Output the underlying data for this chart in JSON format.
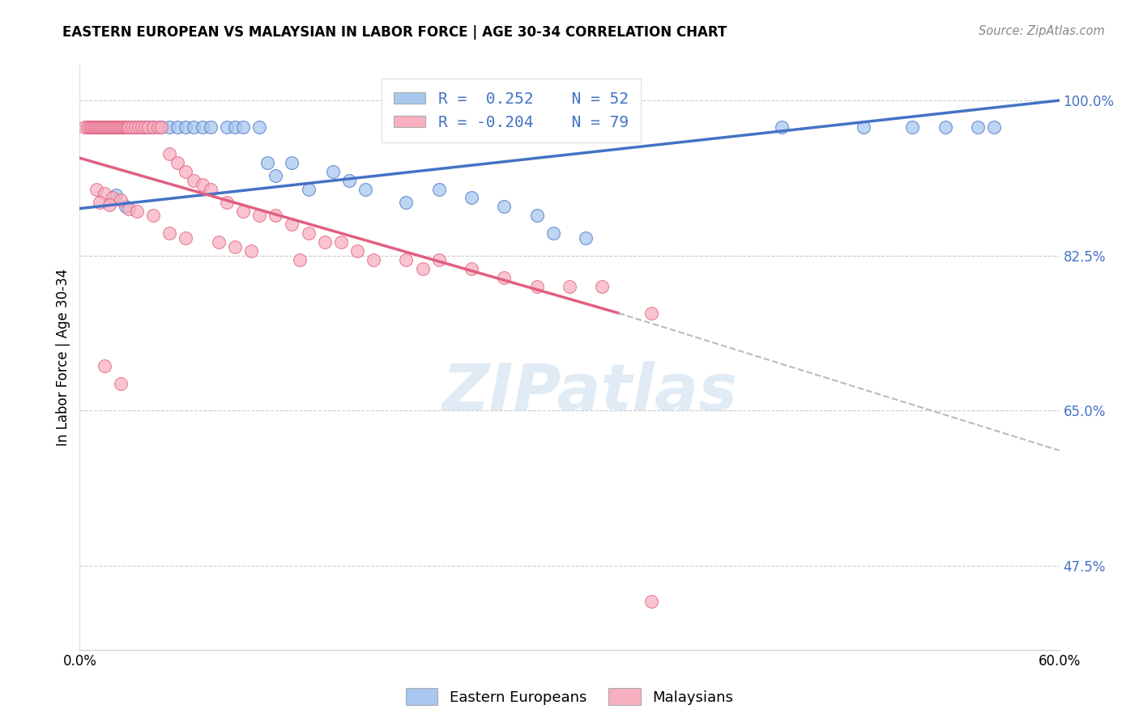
{
  "title": "EASTERN EUROPEAN VS MALAYSIAN IN LABOR FORCE | AGE 30-34 CORRELATION CHART",
  "source": "Source: ZipAtlas.com",
  "ylabel": "In Labor Force | Age 30-34",
  "xlim": [
    0.0,
    0.6
  ],
  "ylim": [
    0.38,
    1.04
  ],
  "yticks": [
    0.475,
    0.65,
    0.825,
    1.0
  ],
  "ytick_labels": [
    "47.5%",
    "65.0%",
    "82.5%",
    "100.0%"
  ],
  "xticks": [
    0.0,
    0.1,
    0.2,
    0.3,
    0.4,
    0.5,
    0.6
  ],
  "xtick_labels": [
    "0.0%",
    "",
    "",
    "",
    "",
    "",
    "60.0%"
  ],
  "legend_r_blue": "0.252",
  "legend_n_blue": "52",
  "legend_r_pink": "-0.204",
  "legend_n_pink": "79",
  "blue_color": "#A8C8F0",
  "pink_color": "#F8B0C0",
  "blue_line_color": "#4472C4",
  "pink_line_color": "#E06080",
  "watermark": "ZIPatlas",
  "blue_line_x0": 0.0,
  "blue_line_y0": 0.878,
  "blue_line_x1": 0.6,
  "blue_line_y1": 1.0,
  "pink_line_solid_x0": 0.0,
  "pink_line_solid_y0": 0.935,
  "pink_line_solid_x1": 0.33,
  "pink_line_solid_y1": 0.76,
  "pink_line_dash_x0": 0.33,
  "pink_line_dash_y0": 0.76,
  "pink_line_dash_x1": 0.6,
  "pink_line_dash_y1": 0.605,
  "blue_scatter_x": [
    0.005,
    0.008,
    0.01,
    0.012,
    0.013,
    0.015,
    0.016,
    0.018,
    0.02,
    0.021,
    0.023,
    0.025,
    0.03,
    0.032,
    0.035,
    0.038,
    0.04,
    0.042,
    0.045,
    0.05,
    0.055,
    0.06,
    0.065,
    0.07,
    0.075,
    0.08,
    0.09,
    0.095,
    0.1,
    0.11,
    0.115,
    0.12,
    0.13,
    0.14,
    0.155,
    0.165,
    0.175,
    0.2,
    0.22,
    0.24,
    0.26,
    0.28,
    0.29,
    0.31,
    0.43,
    0.48,
    0.51,
    0.53,
    0.55,
    0.56,
    0.022,
    0.028
  ],
  "blue_scatter_y": [
    0.97,
    0.97,
    0.97,
    0.97,
    0.97,
    0.97,
    0.97,
    0.97,
    0.97,
    0.97,
    0.97,
    0.97,
    0.97,
    0.97,
    0.97,
    0.97,
    0.97,
    0.97,
    0.97,
    0.97,
    0.97,
    0.97,
    0.97,
    0.97,
    0.97,
    0.97,
    0.97,
    0.97,
    0.97,
    0.97,
    0.93,
    0.915,
    0.93,
    0.9,
    0.92,
    0.91,
    0.9,
    0.885,
    0.9,
    0.89,
    0.88,
    0.87,
    0.85,
    0.845,
    0.97,
    0.97,
    0.97,
    0.97,
    0.97,
    0.97,
    0.893,
    0.88
  ],
  "pink_scatter_x": [
    0.003,
    0.005,
    0.006,
    0.007,
    0.008,
    0.009,
    0.01,
    0.011,
    0.012,
    0.013,
    0.014,
    0.015,
    0.016,
    0.017,
    0.018,
    0.019,
    0.02,
    0.021,
    0.022,
    0.023,
    0.024,
    0.025,
    0.026,
    0.027,
    0.028,
    0.029,
    0.03,
    0.032,
    0.034,
    0.036,
    0.038,
    0.04,
    0.042,
    0.045,
    0.048,
    0.05,
    0.055,
    0.06,
    0.065,
    0.07,
    0.075,
    0.08,
    0.09,
    0.1,
    0.11,
    0.12,
    0.13,
    0.14,
    0.15,
    0.16,
    0.17,
    0.18,
    0.2,
    0.21,
    0.22,
    0.24,
    0.26,
    0.28,
    0.3,
    0.32,
    0.35,
    0.01,
    0.015,
    0.02,
    0.025,
    0.012,
    0.018,
    0.03,
    0.035,
    0.045,
    0.055,
    0.065,
    0.085,
    0.095,
    0.105,
    0.135,
    0.35,
    0.015,
    0.025
  ],
  "pink_scatter_y": [
    0.97,
    0.97,
    0.97,
    0.97,
    0.97,
    0.97,
    0.97,
    0.97,
    0.97,
    0.97,
    0.97,
    0.97,
    0.97,
    0.97,
    0.97,
    0.97,
    0.97,
    0.97,
    0.97,
    0.97,
    0.97,
    0.97,
    0.97,
    0.97,
    0.97,
    0.97,
    0.97,
    0.97,
    0.97,
    0.97,
    0.97,
    0.97,
    0.97,
    0.97,
    0.97,
    0.97,
    0.94,
    0.93,
    0.92,
    0.91,
    0.905,
    0.9,
    0.885,
    0.875,
    0.87,
    0.87,
    0.86,
    0.85,
    0.84,
    0.84,
    0.83,
    0.82,
    0.82,
    0.81,
    0.82,
    0.81,
    0.8,
    0.79,
    0.79,
    0.79,
    0.76,
    0.9,
    0.895,
    0.89,
    0.888,
    0.885,
    0.882,
    0.878,
    0.875,
    0.87,
    0.85,
    0.845,
    0.84,
    0.835,
    0.83,
    0.82,
    0.435,
    0.7,
    0.68
  ]
}
